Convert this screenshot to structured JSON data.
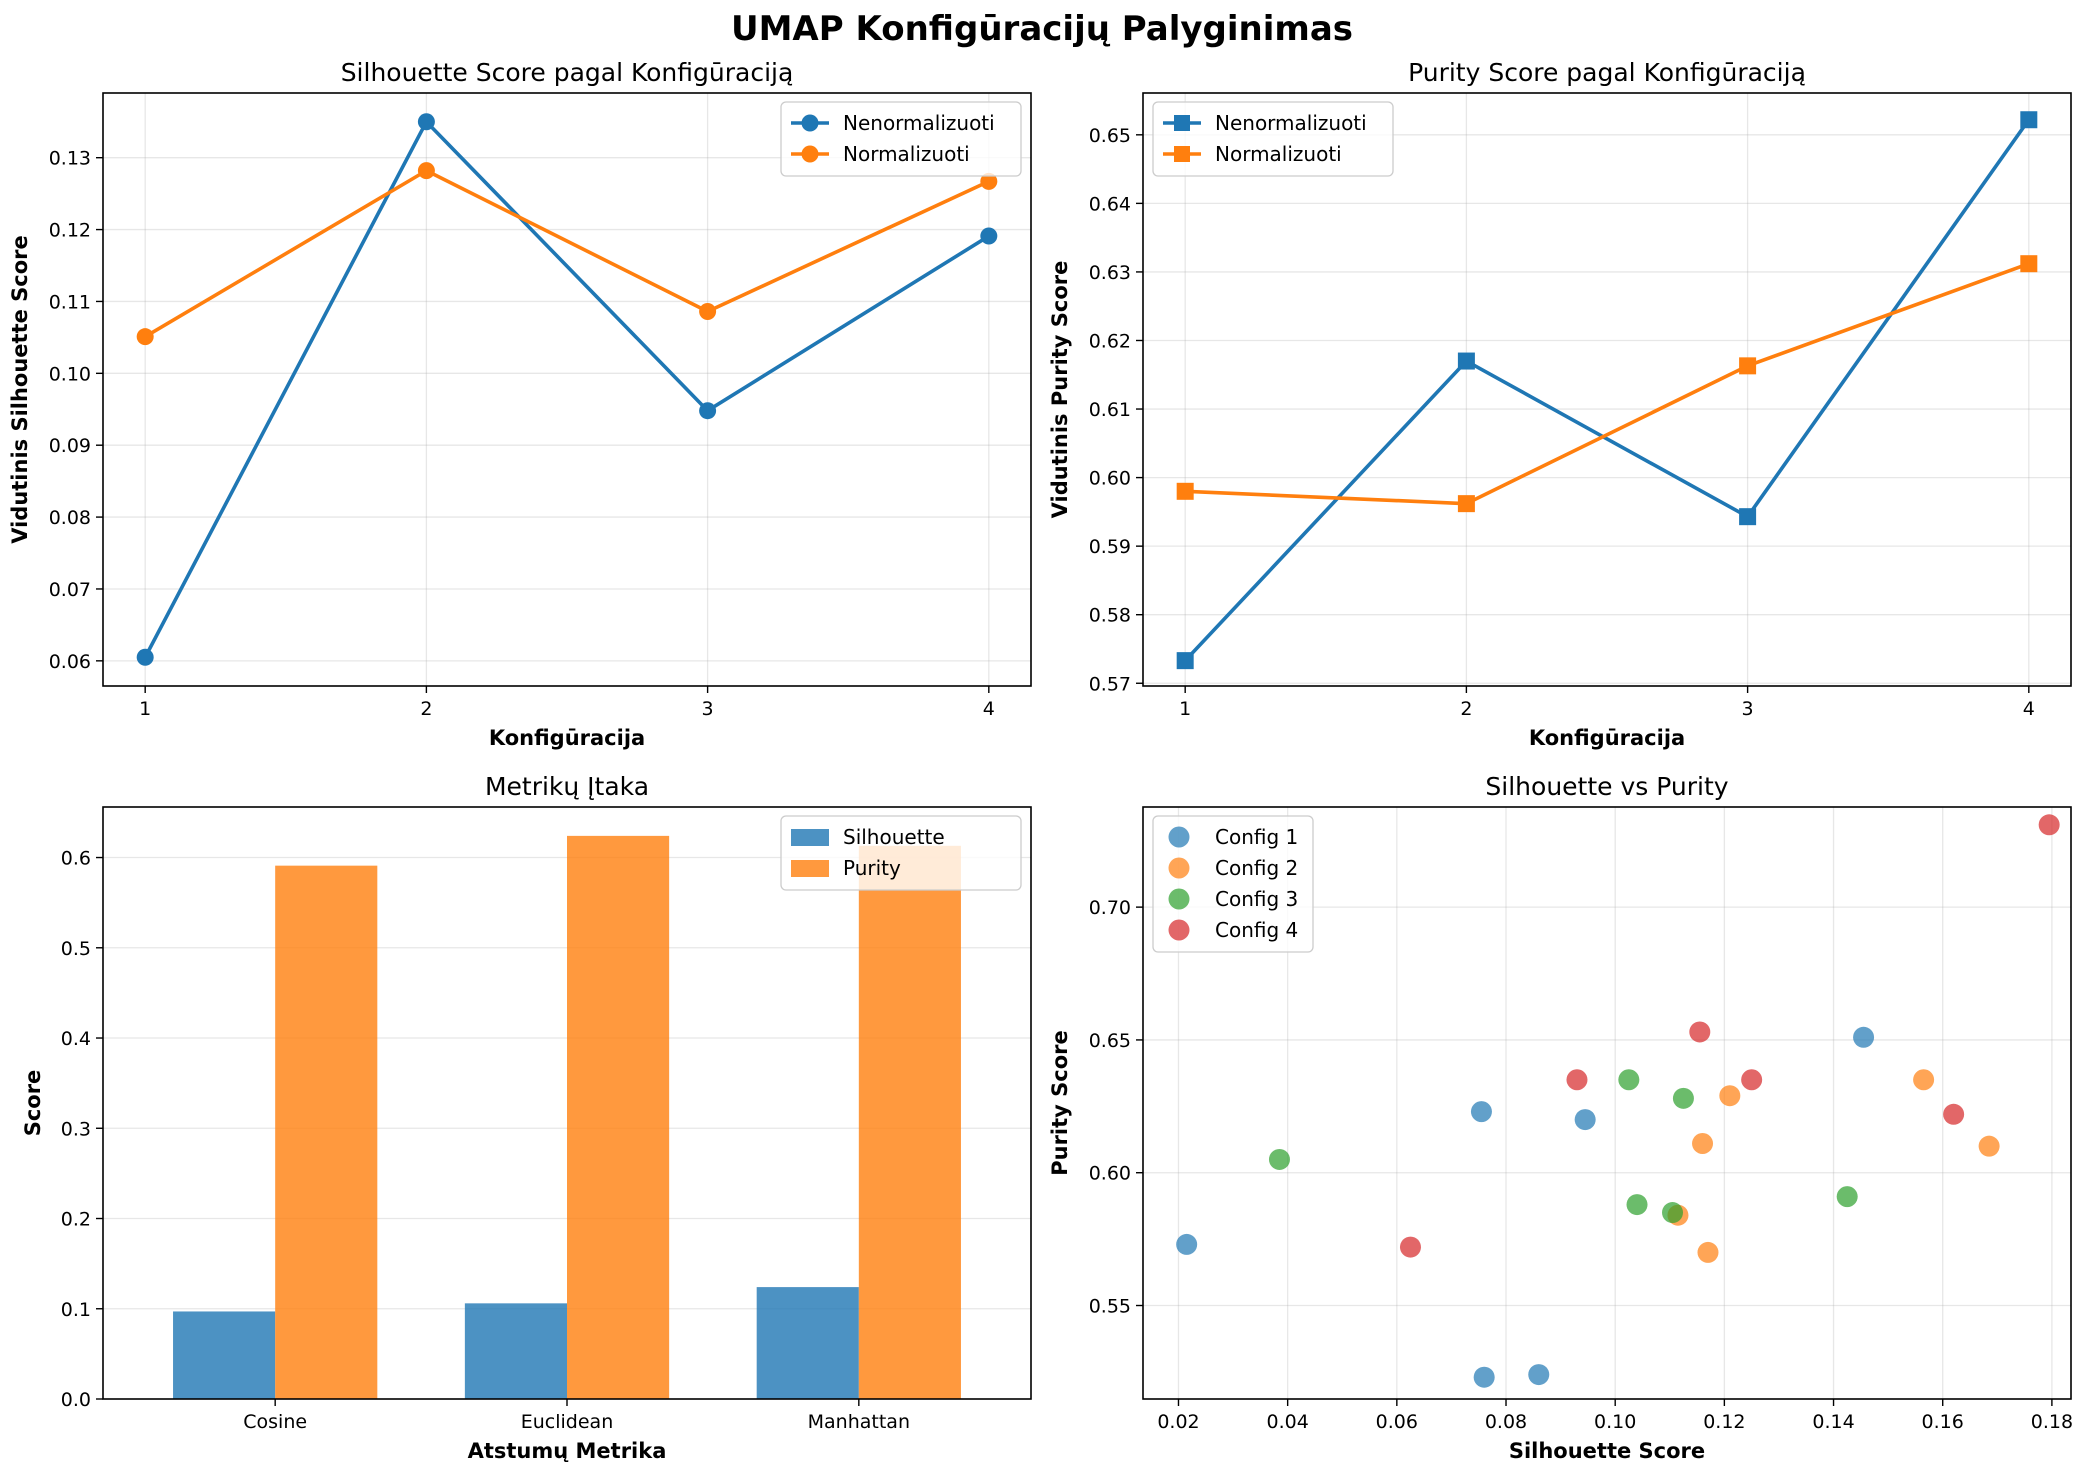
{
  "figure": {
    "title": "UMAP Konfigūracijų Palyginimas"
  },
  "colors": {
    "blue": "#1f77b4",
    "orange": "#ff7f0e",
    "green": "#2ca02c",
    "red": "#d62728"
  },
  "chart_data": [
    {
      "type": "line",
      "title": "Silhouette Score pagal Konfigūraciją",
      "xlabel": "Konfigūracija",
      "ylabel": "Vidutinis Silhouette Score",
      "x": [
        1,
        2,
        3,
        4
      ],
      "xticks": [
        1,
        2,
        3,
        4
      ],
      "xlim": [
        0.85,
        4.15
      ],
      "ylim": [
        0.0565,
        0.139
      ],
      "yticks": [
        0.06,
        0.07,
        0.08,
        0.09,
        0.1,
        0.11,
        0.12,
        0.13
      ],
      "ytick_labels": [
        "0.06",
        "0.07",
        "0.08",
        "0.09",
        "0.10",
        "0.11",
        "0.12",
        "0.13"
      ],
      "marker": "circle",
      "grid": true,
      "legend_position": "top-right",
      "series": [
        {
          "name": "Nenormalizuoti",
          "color": "#1f77b4",
          "values": [
            0.0605,
            0.135,
            0.0948,
            0.1191
          ]
        },
        {
          "name": "Normalizuoti",
          "color": "#ff7f0e",
          "values": [
            0.1051,
            0.1282,
            0.1086,
            0.1267
          ]
        }
      ]
    },
    {
      "type": "line",
      "title": "Purity Score pagal Konfigūraciją",
      "xlabel": "Konfigūracija",
      "ylabel": "Vidutinis Purity Score",
      "x": [
        1,
        2,
        3,
        4
      ],
      "xticks": [
        1,
        2,
        3,
        4
      ],
      "xlim": [
        0.85,
        4.15
      ],
      "ylim": [
        0.5696,
        0.6561
      ],
      "yticks": [
        0.57,
        0.58,
        0.59,
        0.6,
        0.61,
        0.62,
        0.63,
        0.64,
        0.65
      ],
      "ytick_labels": [
        "0.57",
        "0.58",
        "0.59",
        "0.60",
        "0.61",
        "0.62",
        "0.63",
        "0.64",
        "0.65"
      ],
      "marker": "square",
      "grid": true,
      "legend_position": "top-left",
      "series": [
        {
          "name": "Nenormalizuoti",
          "color": "#1f77b4",
          "values": [
            0.5733,
            0.617,
            0.5943,
            0.6522
          ]
        },
        {
          "name": "Normalizuoti",
          "color": "#ff7f0e",
          "values": [
            0.598,
            0.5962,
            0.6163,
            0.6312
          ]
        }
      ]
    },
    {
      "type": "bar",
      "title": "Metrikų Įtaka",
      "xlabel": "Atstumų Metrika",
      "ylabel": "Score",
      "categories": [
        "Cosine",
        "Euclidean",
        "Manhattan"
      ],
      "ylim": [
        0,
        0.656
      ],
      "yticks": [
        0.0,
        0.1,
        0.2,
        0.3,
        0.4,
        0.5,
        0.6
      ],
      "ytick_labels": [
        "0.0",
        "0.1",
        "0.2",
        "0.3",
        "0.4",
        "0.5",
        "0.6"
      ],
      "grid": true,
      "legend_position": "top-right",
      "series": [
        {
          "name": "Silhouette",
          "color": "#1f77b4",
          "values": [
            0.097,
            0.106,
            0.124
          ]
        },
        {
          "name": "Purity",
          "color": "#ff7f0e",
          "values": [
            0.591,
            0.624,
            0.613
          ]
        }
      ]
    },
    {
      "type": "scatter",
      "title": "Silhouette vs Purity",
      "xlabel": "Silhouette Score",
      "ylabel": "Purity Score",
      "xlim": [
        0.0135,
        0.1835
      ],
      "ylim": [
        0.5148,
        0.7377
      ],
      "xticks": [
        0.02,
        0.04,
        0.06,
        0.08,
        0.1,
        0.12,
        0.14,
        0.16,
        0.18
      ],
      "xtick_labels": [
        "0.02",
        "0.04",
        "0.06",
        "0.08",
        "0.10",
        "0.12",
        "0.14",
        "0.16",
        "0.18"
      ],
      "yticks": [
        0.55,
        0.6,
        0.65,
        0.7
      ],
      "ytick_labels": [
        "0.55",
        "0.60",
        "0.65",
        "0.70"
      ],
      "grid": true,
      "legend_position": "top-left",
      "series": [
        {
          "name": "Config 1",
          "color": "#1f77b4",
          "points": [
            [
              0.0215,
              0.573
            ],
            [
              0.0755,
              0.623
            ],
            [
              0.0945,
              0.62
            ],
            [
              0.1455,
              0.651
            ],
            [
              0.076,
              0.523
            ],
            [
              0.086,
              0.524
            ]
          ]
        },
        {
          "name": "Config 2",
          "color": "#ff7f0e",
          "points": [
            [
              0.1115,
              0.584
            ],
            [
              0.116,
              0.611
            ],
            [
              0.117,
              0.57
            ],
            [
              0.121,
              0.629
            ],
            [
              0.1565,
              0.635
            ],
            [
              0.1685,
              0.61
            ]
          ]
        },
        {
          "name": "Config 3",
          "color": "#2ca02c",
          "points": [
            [
              0.0385,
              0.605
            ],
            [
              0.1025,
              0.635
            ],
            [
              0.104,
              0.588
            ],
            [
              0.1105,
              0.585
            ],
            [
              0.1125,
              0.628
            ],
            [
              0.1425,
              0.591
            ]
          ]
        },
        {
          "name": "Config 4",
          "color": "#d62728",
          "points": [
            [
              0.0625,
              0.572
            ],
            [
              0.093,
              0.635
            ],
            [
              0.1155,
              0.653
            ],
            [
              0.125,
              0.635
            ],
            [
              0.162,
              0.622
            ],
            [
              0.1795,
              0.731
            ]
          ]
        }
      ]
    }
  ]
}
